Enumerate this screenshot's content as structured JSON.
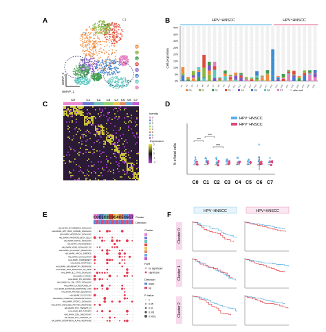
{
  "figure": {
    "panels": {
      "A": {
        "label": "A",
        "x_axis_label": "UMAP_1",
        "y_axis_label": "UMAP_2",
        "cluster_labels": [
          "C0",
          "C1",
          "C2",
          "C3",
          "C4",
          "C5",
          "C6",
          "C7"
        ],
        "cluster_colors": [
          "#f08a3c",
          "#8ab63f",
          "#3f9a4e",
          "#e04a3a",
          "#7e57c2",
          "#3d7fd1",
          "#5ec8c0",
          "#e67fc0"
        ]
      },
      "B": {
        "label": "B",
        "group_neg": "HPV⁻HNSCC",
        "group_pos": "HPV⁺HNSCC",
        "y_axis_label": "Cell proportion",
        "y_ticks": [
          "0%",
          "5%",
          "10%",
          "15%",
          "20%",
          "25%",
          "30%",
          "35%",
          "40%"
        ],
        "legend_items": [
          "C0",
          "C1",
          "C2",
          "C3",
          "C4",
          "C5",
          "C6",
          "C7",
          "other cell"
        ]
      },
      "C": {
        "label": "C",
        "cluster_labels": [
          "C0",
          "C1",
          "C2",
          "C3",
          "C4",
          "C5",
          "C6",
          "C7"
        ],
        "identity_title": "Identity",
        "identity_values": [
          "0",
          "1",
          "2",
          "3",
          "4",
          "5",
          "6",
          "7"
        ],
        "expression_title": "Expression",
        "expression_ticks": [
          "2",
          "1",
          "0",
          "-1",
          "-2"
        ]
      },
      "D": {
        "label": "D",
        "y_axis_label": "% of total cells",
        "legend_neg": "HPV⁻HNSCC",
        "legend_pos": "HPV⁺HNSCC",
        "legend_neg_color": "#5aaee8",
        "legend_pos_color": "#e0457b",
        "categories": [
          "C0",
          "C1",
          "C2",
          "C3",
          "C4",
          "C5",
          "C6",
          "C7"
        ],
        "significance": [
          "***",
          "***",
          "***"
        ]
      },
      "E": {
        "label": "E",
        "cluster_labels": [
          "C0",
          "C1",
          "C2",
          "C3",
          "C4",
          "C5",
          "C6",
          "C7"
        ],
        "header_cluster": "Cluster",
        "header_direction": "Direction",
        "legend_cluster_title": "Cluster",
        "legend_fdr_title": "FDR",
        "legend_fdr_items": [
          "no significant",
          "significant"
        ],
        "legend_direction_title": "Direction",
        "legend_direction_items": [
          "down",
          "up"
        ],
        "legend_pvalue_title": "P Value",
        "legend_pvalue_items": [
          "1",
          "0.05",
          "0.01",
          "0.001",
          "0.0001"
        ],
        "pathways": [
          "HALLMARK_MYOGENESIS_SIGNALING",
          "HALLMARK_WNT_BETA_CATENIN_SIGNALING",
          "HALLMARK_HEDGEHOG_SIGNALING",
          "HALLMARK_PANCREAS_BETA_CELLS",
          "HALLMARK_NOTCH_SIGNALING",
          "HALLMARK_ANGIOGENESIS",
          "HALLMARK_KRAS_SIGNALING_DN",
          "HALLMARK_ALLOGRAFT_REJECTION",
          "HALLMARK_APICAL_SURFACE",
          "HALLMARK_COAGULATION",
          "HALLMARK_COMPLEMENT",
          "HALLMARK_APOPTOSIS",
          "HALLMARK_INFLAMMATORY_RESPONSE",
          "HALLMARK_TNFA_SIGNALING_VIA_NFKB",
          "HALLMARK_IL2_STAT5_SIGNALING",
          "HALLMARK_HYPOXIA",
          "HALLMARK_P53_PATHWAY",
          "HALLMARK_IL6_JAK_STAT3_SIGNALING",
          "HALLMARK_UV_RESPONSE_UP",
          "HALLMARK_ESTROGEN_RESPONSE_LATE",
          "HALLMARK_PROTEIN_SECRETION",
          "HALLMARK_GLYCOLYSIS",
          "HALLMARK_OXIDATIVE_PHOSPHORYLATION",
          "HALLMARK_MTORC1_SIGNALING",
          "HALLMARK_UNFOLDED_PROTEIN_RESPONSE",
          "HALLMARK_MYC_TARGETS_V1",
          "HALLMARK_E2F_TARGETS",
          "HALLMARK_G2M_CHECKPOINT",
          "HALLMARK_MYC_TARGETS_V2",
          "HALLMARK_INTERFERON_ALPHA_RESPONSE"
        ]
      },
      "F": {
        "label": "F",
        "group_neg": "HPV⁻HNSCC",
        "group_pos": "HPV⁺HNSCC",
        "rows": [
          "Cluster 0",
          "Cluster 1",
          "Cluster 2"
        ]
      }
    }
  }
}
